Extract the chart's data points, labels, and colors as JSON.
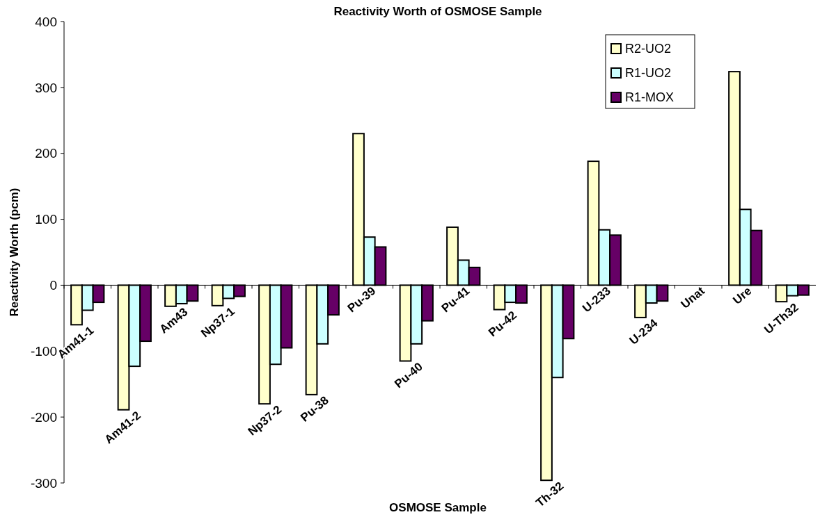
{
  "chart_data": {
    "type": "bar",
    "title": "Reactivity Worth of OSMOSE Sample",
    "xlabel": "OSMOSE Sample",
    "ylabel": "Reactivity Worth (pcm)",
    "categories": [
      "Am41-1",
      "Am41-2",
      "Am43",
      "Np37-1",
      "Np37-2",
      "Pu-38",
      "Pu-39",
      "Pu-40",
      "Pu-41",
      "Pu-42",
      "Th-32",
      "U-233",
      "U-234",
      "Unat",
      "Ure",
      "U-Th32"
    ],
    "series": [
      {
        "name": "R2-UO2",
        "color": "#ffffcc",
        "values": [
          -60,
          -189,
          -32,
          -31,
          -180,
          -166,
          230,
          -115,
          88,
          -37,
          -296,
          188,
          -49,
          null,
          324,
          -25
        ]
      },
      {
        "name": "R1-UO2",
        "color": "#ccffff",
        "values": [
          -38,
          -123,
          -28,
          -20,
          -120,
          -89,
          73,
          -89,
          38,
          -26,
          -140,
          84,
          -27,
          null,
          115,
          -16
        ]
      },
      {
        "name": "R1-MOX",
        "color": "#660066",
        "values": [
          -26,
          -85,
          -24,
          -17,
          -95,
          -45,
          58,
          -54,
          27,
          -27,
          -81,
          76,
          -24,
          null,
          83,
          -15
        ]
      }
    ],
    "ylim": [
      -300,
      400
    ],
    "yticks": [
      -300,
      -200,
      -100,
      0,
      100,
      200,
      300,
      400
    ],
    "legend": "top right",
    "grid": false
  }
}
